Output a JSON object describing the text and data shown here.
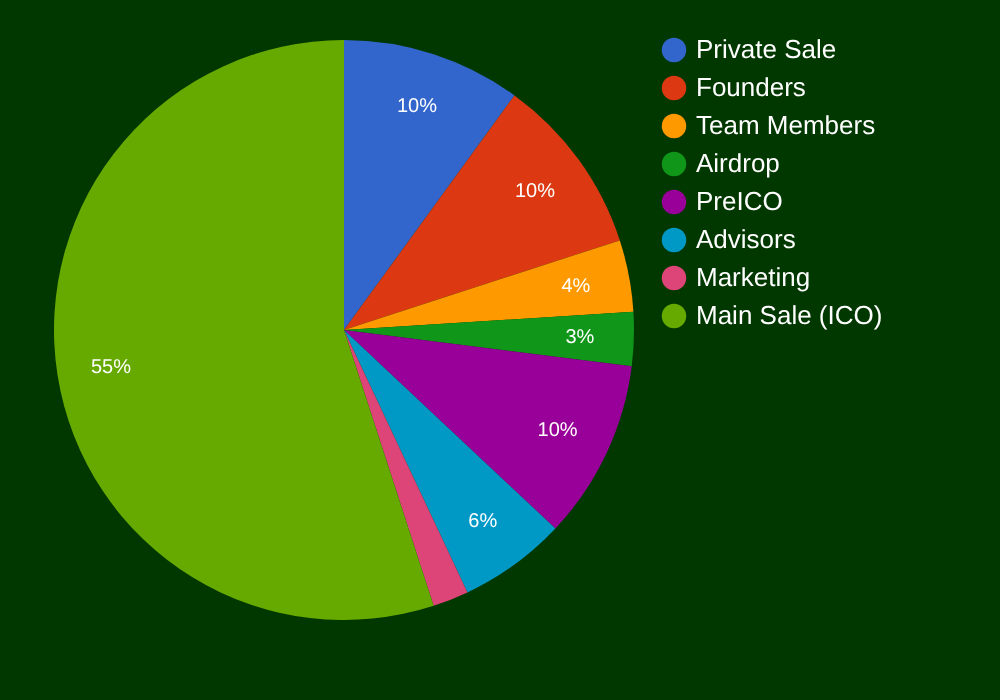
{
  "chart_data": {
    "type": "pie",
    "categories": [
      "Private Sale",
      "Founders",
      "Team Members",
      "Airdrop",
      "PreICO",
      "Advisors",
      "Marketing",
      "Main Sale (ICO)"
    ],
    "values": [
      10,
      10,
      4,
      3,
      10,
      6,
      2,
      55
    ],
    "colors": [
      "#3366cc",
      "#dc3912",
      "#ff9900",
      "#109618",
      "#990099",
      "#0099c6",
      "#dd4477",
      "#66aa00"
    ],
    "value_labels": [
      "10%",
      "10%",
      "4%",
      "3%",
      "10%",
      "6%",
      null,
      "55%"
    ],
    "legend": "right"
  }
}
